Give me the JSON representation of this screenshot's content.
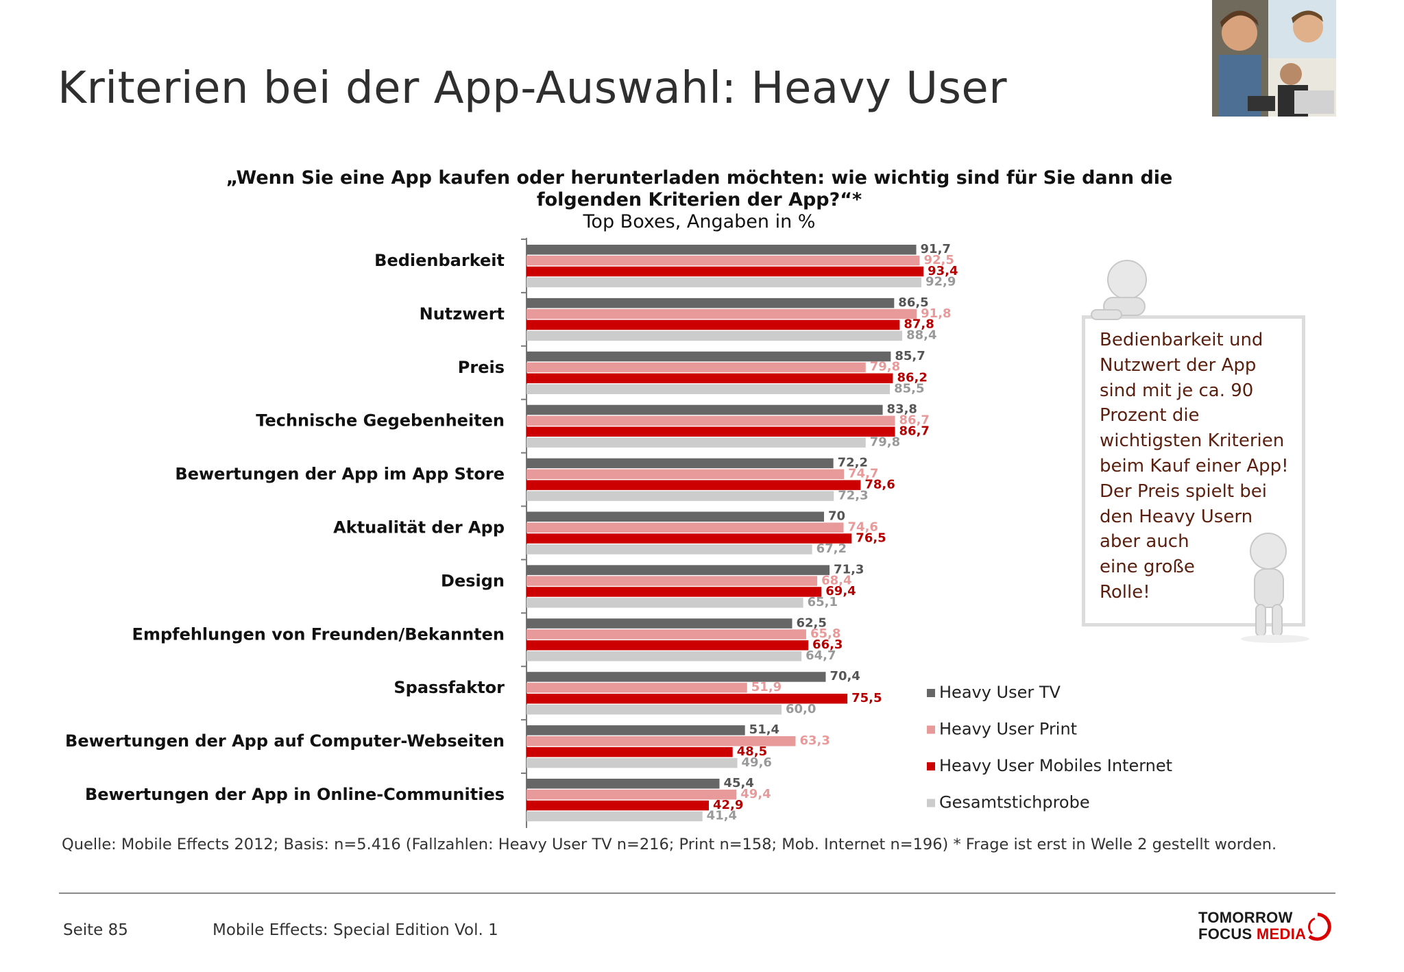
{
  "header": {
    "title": "Kriterien bei der App-Auswahl: Heavy User"
  },
  "chart_data": {
    "type": "bar",
    "orientation": "horizontal",
    "title": "„Wenn Sie eine App kaufen oder herunterladen möchten: wie wichtig sind für Sie dann die folgenden Kriterien der App?“*",
    "subtitle": "Top Boxes, Angaben in %",
    "categories": [
      "Bedienbarkeit",
      "Nutzwert",
      "Preis",
      "Technische Gegebenheiten",
      "Bewertungen der App im App Store",
      "Aktualität der App",
      "Design",
      "Empfehlungen von Freunden/Bekannten",
      "Spassfaktor",
      "Bewertungen der App auf Computer-Webseiten",
      "Bewertungen der App in Online-Communities"
    ],
    "series": [
      {
        "name": "Heavy User TV",
        "color": "#666666",
        "label_color": "#555555",
        "values": [
          91.7,
          86.5,
          85.7,
          83.8,
          72.2,
          70,
          71.3,
          62.5,
          70.4,
          51.4,
          45.4
        ],
        "labels": [
          "91,7",
          "86,5",
          "85,7",
          "83,8",
          "72,2",
          "70",
          "71,3",
          "62,5",
          "70,4",
          "51,4",
          "45,4"
        ]
      },
      {
        "name": "Heavy User Print",
        "color": "#e89a9a",
        "label_color": "#e89a9a",
        "values": [
          92.5,
          91.8,
          79.8,
          86.7,
          74.7,
          74.6,
          68.4,
          65.8,
          51.9,
          63.3,
          49.4
        ],
        "labels": [
          "92,5",
          "91,8",
          "79,8",
          "86,7",
          "74,7",
          "74,6",
          "68,4",
          "65,8",
          "51,9",
          "63,3",
          "49,4"
        ]
      },
      {
        "name": "Heavy User Mobiles Internet",
        "color": "#cc0000",
        "label_color": "#b40000",
        "values": [
          93.4,
          87.8,
          86.2,
          86.7,
          78.6,
          76.5,
          69.4,
          66.3,
          75.5,
          48.5,
          42.9
        ],
        "labels": [
          "93,4",
          "87,8",
          "86,2",
          "86,7",
          "78,6",
          "76,5",
          "69,4",
          "66,3",
          "75,5",
          "48,5",
          "42,9"
        ]
      },
      {
        "name": "Gesamtstichprobe",
        "color": "#cccccc",
        "label_color": "#999999",
        "values": [
          92.9,
          88.4,
          85.5,
          79.8,
          72.3,
          67.2,
          65.1,
          64.7,
          60.0,
          49.6,
          41.4
        ],
        "labels": [
          "92,9",
          "88,4",
          "85,5",
          "79,8",
          "72,3",
          "67,2",
          "65,1",
          "64,7",
          "60,0",
          "49,6",
          "41,4"
        ]
      }
    ],
    "xlim": [
      0,
      100
    ],
    "legend_position": "bottom-right",
    "grid": false
  },
  "callout": {
    "text": "Bedienbarkeit und\nNutzwert der App\nsind mit je ca. 90\nProzent die\nwichtigsten Kriterien\nbeim Kauf einer App!\nDer Preis spielt bei\nden Heavy Usern\naber auch\neine große\nRolle!"
  },
  "footer": {
    "source": "Quelle: Mobile Effects 2012; Basis: n=5.416 (Fallzahlen: Heavy User TV n=216; Print n=158; Mob. Internet n=196) * Frage ist erst in Welle 2 gestellt worden.",
    "page": "Seite 85",
    "publication": "Mobile Effects: Special Edition Vol. 1",
    "logo_line1": "TOMORROW",
    "logo_line2a": "FOCUS ",
    "logo_line2b": "MEDIA"
  }
}
